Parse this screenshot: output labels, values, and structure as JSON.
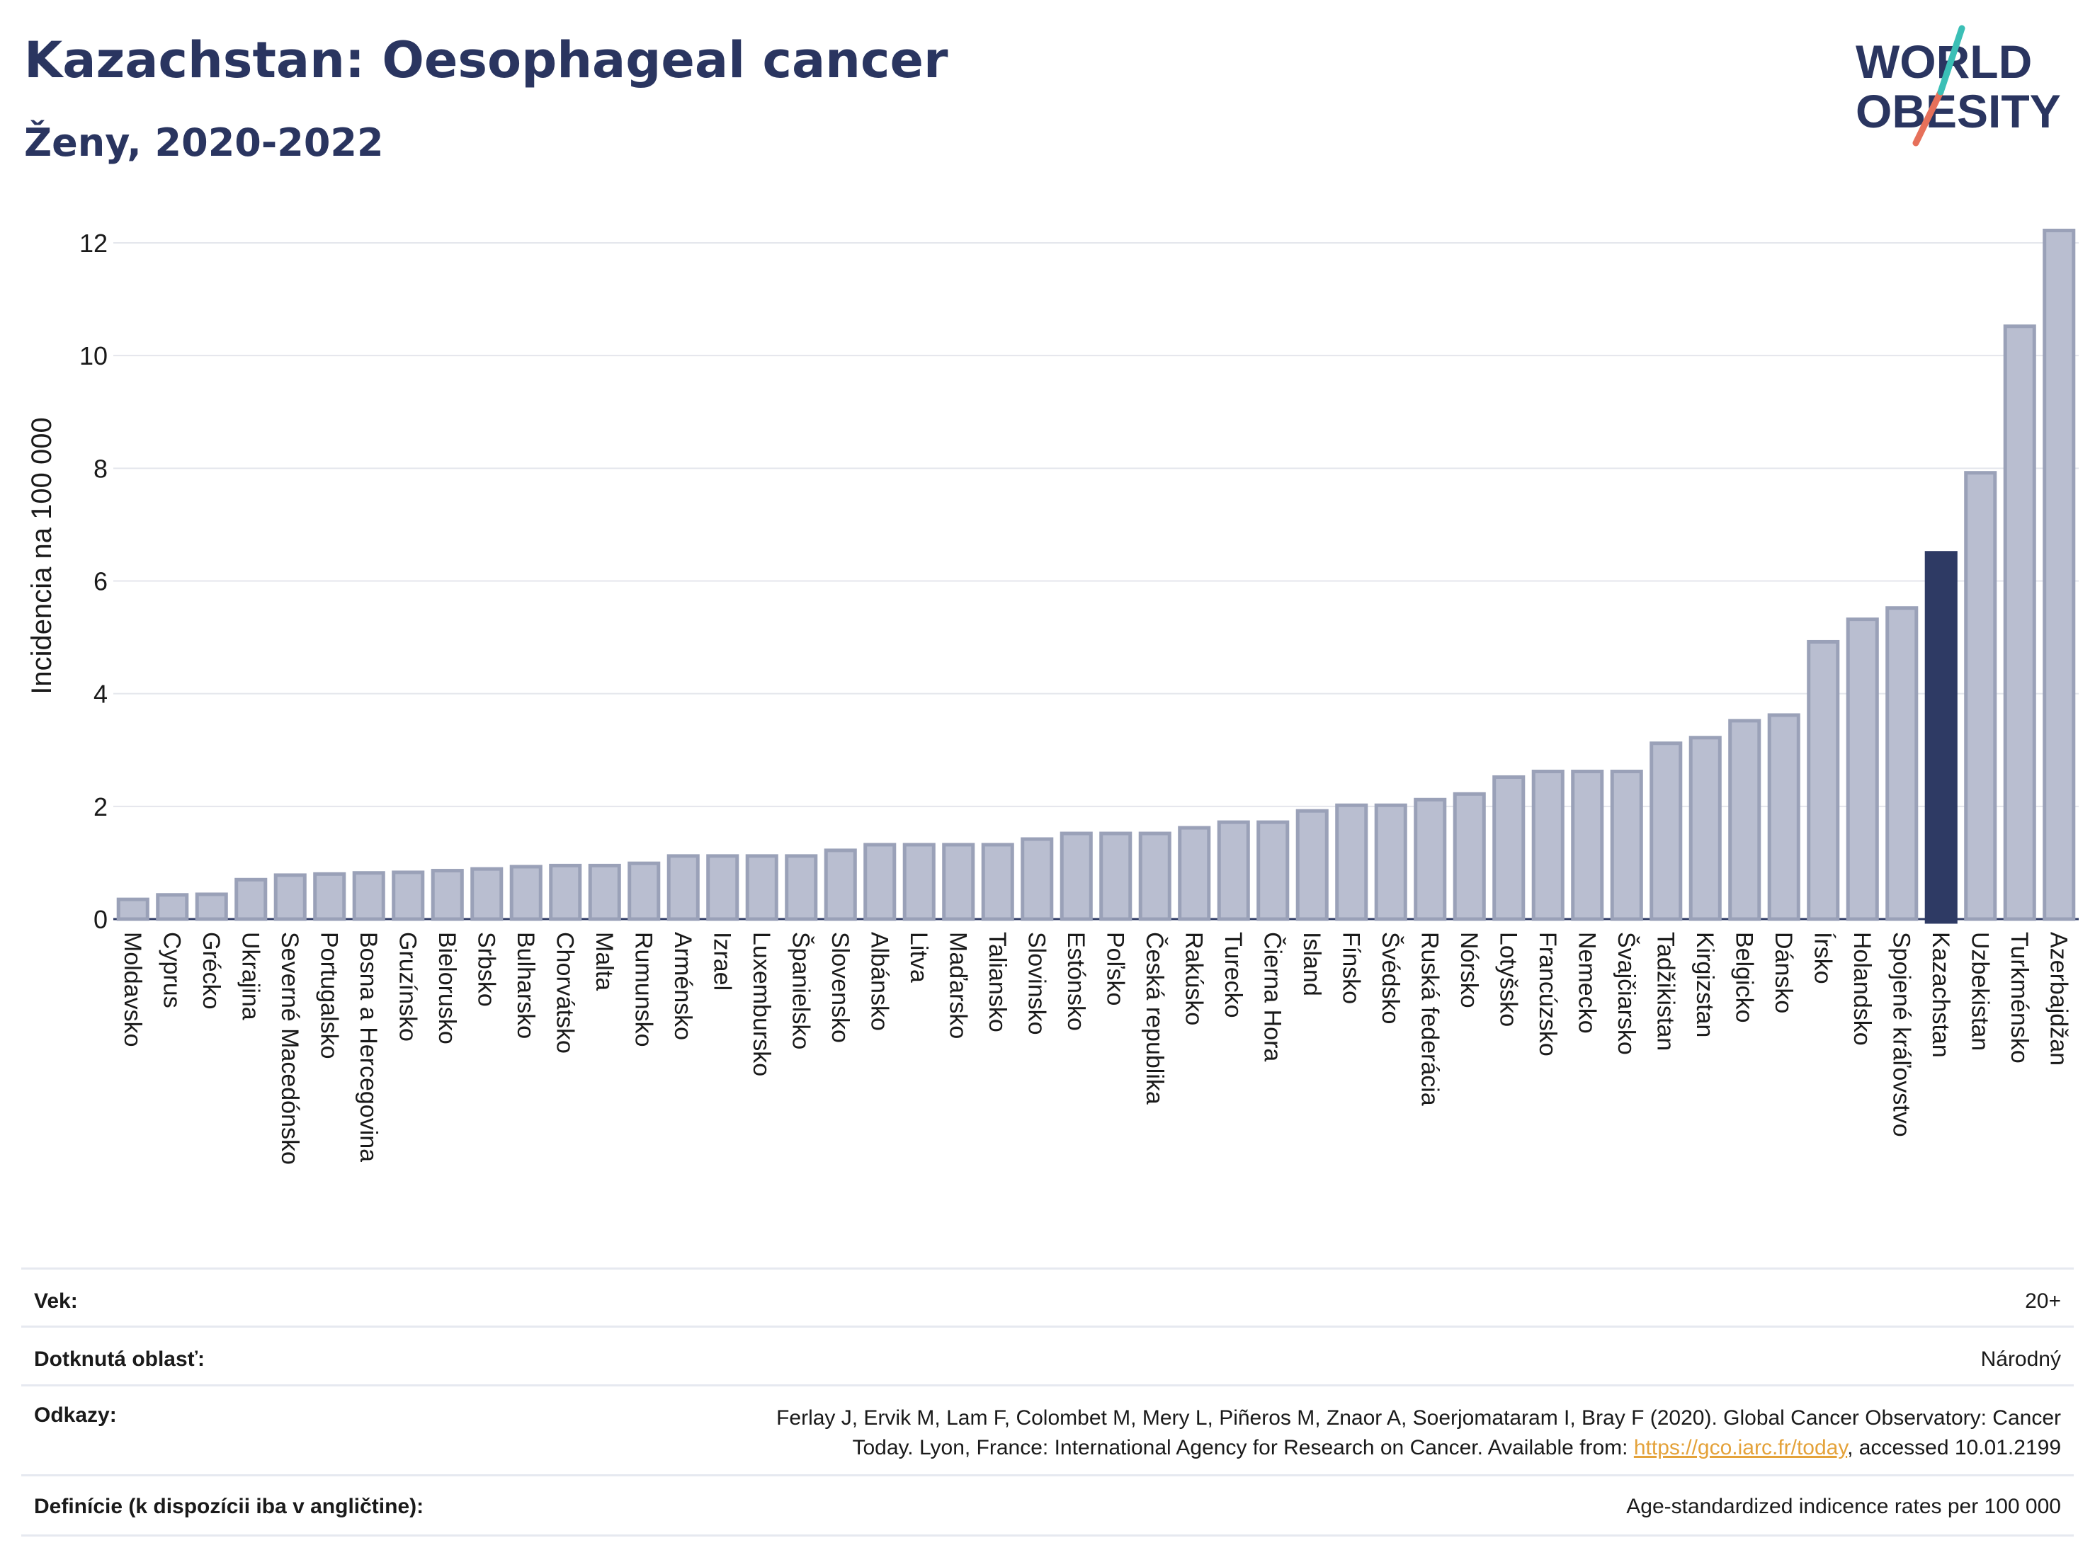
{
  "header": {
    "title": "Kazachstan: Oesophageal cancer",
    "subtitle": "Ženy, 2020-2022"
  },
  "logo": {
    "line1": "WORLD",
    "line2": "OBESITY"
  },
  "chart_data": {
    "type": "bar",
    "title": "Kazachstan: Oesophageal cancer",
    "subtitle": "Ženy, 2020-2022",
    "xlabel": "",
    "ylabel": "Incidencia na 100 000",
    "ylim": [
      0,
      12.5
    ],
    "yticks": [
      0,
      2,
      4,
      6,
      8,
      10,
      12
    ],
    "grid": true,
    "highlight": "Kazachstan",
    "colors": {
      "bar": "#b9bed0",
      "bar_edge": "#9aa1b8",
      "highlight": "#2e3a64",
      "grid": "#e4e6ec"
    },
    "categories": [
      "Moldavsko",
      "Cyprus",
      "Grécko",
      "Ukrajina",
      "Severné Macedónsko",
      "Portugalsko",
      "Bosna a Hercegovina",
      "Gruzínsko",
      "Bielorusko",
      "Srbsko",
      "Bulharsko",
      "Chorvátsko",
      "Malta",
      "Rumunsko",
      "Arménsko",
      "Izrael",
      "Luxembursko",
      "Španielsko",
      "Slovensko",
      "Albánsko",
      "Litva",
      "Maďarsko",
      "Taliansko",
      "Slovinsko",
      "Estónsko",
      "Poľsko",
      "Česká republika",
      "Rakúsko",
      "Turecko",
      "Čierna Hora",
      "Island",
      "Fínsko",
      "Švédsko",
      "Ruská federácia",
      "Nórsko",
      "Lotyšsko",
      "Francúzsko",
      "Nemecko",
      "Švajčiarsko",
      "Tadžikistan",
      "Kirgizstan",
      "Belgicko",
      "Dánsko",
      "Írsko",
      "Holandsko",
      "Spojené kráľovstvo",
      "Kazachstan",
      "Uzbekistan",
      "Turkménsko",
      "Azerbajdžan"
    ],
    "values": [
      0.35,
      0.43,
      0.44,
      0.7,
      0.78,
      0.8,
      0.82,
      0.83,
      0.86,
      0.89,
      0.93,
      0.95,
      0.95,
      0.99,
      1.12,
      1.12,
      1.12,
      1.12,
      1.22,
      1.32,
      1.32,
      1.32,
      1.32,
      1.42,
      1.52,
      1.52,
      1.52,
      1.62,
      1.72,
      1.72,
      1.92,
      2.02,
      2.02,
      2.12,
      2.22,
      2.52,
      2.62,
      2.62,
      2.62,
      3.12,
      3.22,
      3.52,
      3.62,
      4.92,
      5.32,
      5.52,
      6.5,
      7.92,
      10.52,
      12.22
    ]
  },
  "meta": {
    "age_label": "Vek:",
    "age_value": "20+",
    "area_label": "Dotknutá oblasť:",
    "area_value": "Národný",
    "refs_label": "Odkazy:",
    "refs_line1": "Ferlay J, Ervik M, Lam F, Colombet M, Mery L, Piñeros M, Znaor A, Soerjomataram I, Bray F (2020). Global Cancer Observatory: Cancer",
    "refs_line2_pre": "Today. Lyon, France: International Agency for Research on Cancer. Available from: ",
    "refs_link": "https://gco.iarc.fr/today",
    "refs_line2_post": ", accessed 10.01.2199",
    "def_label": "Definície (k dispozícii iba v angličtine):",
    "def_value": "Age-standardized indicence rates per 100 000"
  }
}
